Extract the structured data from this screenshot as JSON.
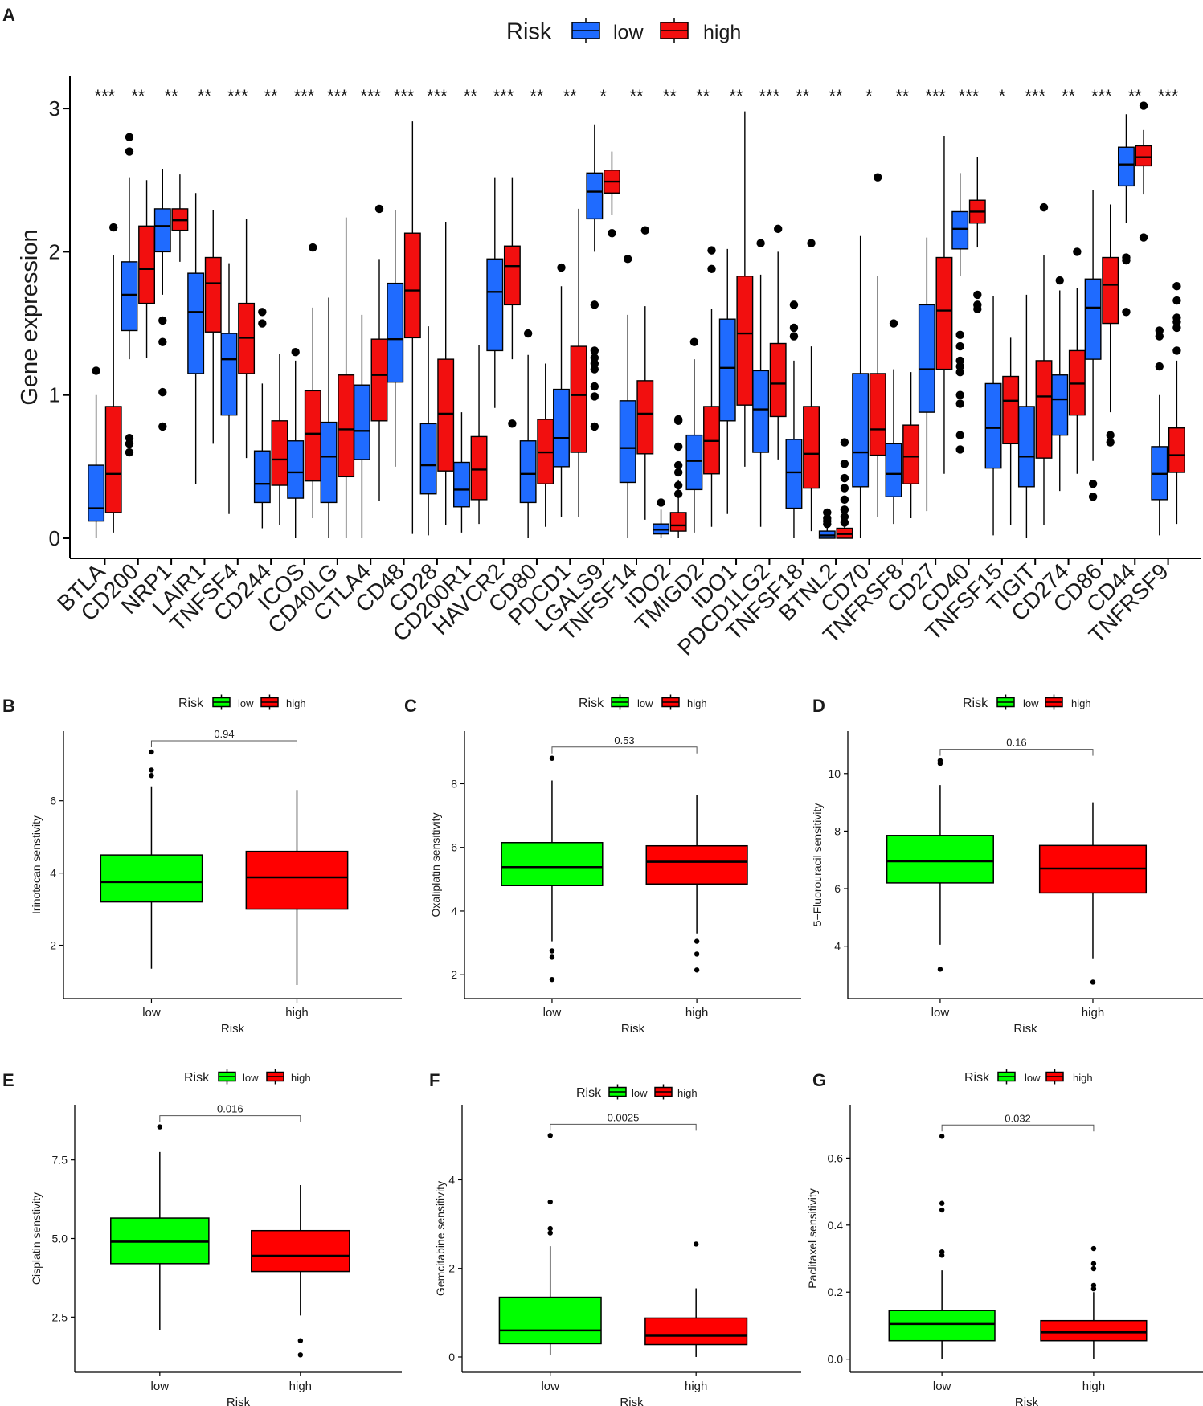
{
  "colors": {
    "panelA_low": "#1F6BFF",
    "panelA_high": "#F20F0F",
    "lower_low": "#00FF00",
    "lower_high": "#FF0000",
    "axis": "#000000",
    "text": "#1a1a1a"
  },
  "chart_data": [
    {
      "id": "A",
      "panel_label": "A",
      "type": "box",
      "legend": {
        "title": "Risk",
        "position": "top",
        "items": [
          "low",
          "high"
        ]
      },
      "ylabel": "Gene expression",
      "xlabel": "",
      "ylim": [
        -0.15,
        3.12
      ],
      "yticks": [
        "0",
        "1",
        "2",
        "3"
      ],
      "categories": [
        "BTLA",
        "CD200",
        "NRP1",
        "LAIR1",
        "TNFSF4",
        "CD244",
        "ICOS",
        "CD40LG",
        "CTLA4",
        "CD48",
        "CD28",
        "CD200R1",
        "HAVCR2",
        "CD80",
        "PDCD1",
        "LGALS9",
        "TNFSF14",
        "IDO2",
        "TMIGD2",
        "IDO1",
        "PDCD1LG2",
        "TNFSF18",
        "BTNL2",
        "CD70",
        "TNFRSF8",
        "CD27",
        "CD40",
        "TNFSF15",
        "TIGIT",
        "CD274",
        "CD86",
        "CD44",
        "TNFRSF9"
      ],
      "significance": [
        "***",
        "**",
        "**",
        "**",
        "***",
        "**",
        "***",
        "***",
        "***",
        "***",
        "***",
        "**",
        "***",
        "**",
        "**",
        "*",
        "**",
        "**",
        "**",
        "**",
        "***",
        "**",
        "**",
        "*",
        "**",
        "***",
        "***",
        "*",
        "***",
        "**",
        "***",
        "**",
        "***"
      ],
      "series": [
        {
          "name": "low",
          "boxes": [
            [
              0,
              0.12,
              0.21,
              0.51,
              1.0
            ],
            [
              1.25,
              1.45,
              1.7,
              1.93,
              2.52
            ],
            [
              1.7,
              2.0,
              2.18,
              2.3,
              2.58
            ],
            [
              0.38,
              1.15,
              1.58,
              1.85,
              2.41
            ],
            [
              0.17,
              0.86,
              1.25,
              1.43,
              1.92
            ],
            [
              0.07,
              0.25,
              0.38,
              0.61,
              1.08
            ],
            [
              0.0,
              0.28,
              0.46,
              0.68,
              1.24
            ],
            [
              0.0,
              0.25,
              0.57,
              0.81,
              1.68
            ],
            [
              0.0,
              0.55,
              0.75,
              1.07,
              1.56
            ],
            [
              0.5,
              1.09,
              1.39,
              1.78,
              2.29
            ],
            [
              0.02,
              0.31,
              0.51,
              0.8,
              1.48
            ],
            [
              0.04,
              0.22,
              0.34,
              0.53,
              0.88
            ],
            [
              0.91,
              1.31,
              1.72,
              1.95,
              2.52
            ],
            [
              0.0,
              0.25,
              0.45,
              0.68,
              1.28
            ],
            [
              0.15,
              0.5,
              0.7,
              1.04,
              1.76
            ],
            [
              2.0,
              2.23,
              2.42,
              2.55,
              2.89
            ],
            [
              0.0,
              0.39,
              0.63,
              0.96,
              1.56
            ],
            [
              0.0,
              0.03,
              0.06,
              0.1,
              0.2
            ],
            [
              0.04,
              0.34,
              0.54,
              0.72,
              1.25
            ],
            [
              0.17,
              0.82,
              1.19,
              1.53,
              2.02
            ],
            [
              0.08,
              0.6,
              0.9,
              1.17,
              1.84
            ],
            [
              0.0,
              0.21,
              0.46,
              0.69,
              1.24
            ],
            [
              0.0,
              0.0,
              0.02,
              0.05,
              0.08
            ],
            [
              0.0,
              0.36,
              0.6,
              1.15,
              2.11
            ],
            [
              0.1,
              0.29,
              0.45,
              0.66,
              1.18
            ],
            [
              0.19,
              0.88,
              1.18,
              1.63,
              2.1
            ],
            [
              1.83,
              2.02,
              2.16,
              2.28,
              2.55
            ],
            [
              0.02,
              0.49,
              0.77,
              1.08,
              1.69
            ],
            [
              0.0,
              0.36,
              0.57,
              0.92,
              1.7
            ],
            [
              0.33,
              0.72,
              0.97,
              1.14,
              1.73
            ],
            [
              0.54,
              1.25,
              1.61,
              1.81,
              2.43
            ],
            [
              2.2,
              2.46,
              2.61,
              2.73,
              2.96
            ],
            [
              0.02,
              0.27,
              0.45,
              0.64,
              1.0
            ]
          ],
          "outliers": [
            [
              1.17
            ],
            [
              2.7,
              2.8,
              0.6,
              0.66,
              0.7
            ],
            [
              1.52,
              1.37,
              1.02,
              0.78
            ],
            [],
            [],
            [
              1.58,
              1.5
            ],
            [
              1.3
            ],
            [],
            [],
            [],
            [],
            [],
            [],
            [
              1.43
            ],
            [
              1.89
            ],
            [
              1.63,
              1.31,
              1.26,
              1.22,
              1.18,
              1.06,
              0.99,
              0.78
            ],
            [
              1.95
            ],
            [
              0.25
            ],
            [
              1.37
            ],
            [],
            [
              2.06
            ],
            [
              1.63,
              1.47,
              1.41
            ],
            [
              0.18,
              0.14,
              0.12,
              0.1
            ],
            [],
            [
              1.5
            ],
            [],
            [
              1.42,
              1.34,
              1.24,
              1.2,
              1.16,
              1.0,
              0.94,
              0.72,
              0.62
            ],
            [],
            [],
            [
              1.8
            ],
            [
              0.38,
              0.29
            ],
            [
              1.96,
              1.94,
              1.58
            ],
            [
              1.45,
              1.41,
              1.2
            ]
          ]
        },
        {
          "name": "high",
          "boxes": [
            [
              0.04,
              0.18,
              0.45,
              0.92,
              1.98
            ],
            [
              1.26,
              1.64,
              1.88,
              2.18,
              2.5
            ],
            [
              1.93,
              2.15,
              2.22,
              2.3,
              2.54
            ],
            [
              0.66,
              1.44,
              1.78,
              1.96,
              2.29
            ],
            [
              0.56,
              1.15,
              1.4,
              1.64,
              2.23
            ],
            [
              0.09,
              0.37,
              0.55,
              0.82,
              1.29
            ],
            [
              0.14,
              0.4,
              0.73,
              1.03,
              1.61
            ],
            [
              0.0,
              0.43,
              0.76,
              1.14,
              2.24
            ],
            [
              0.26,
              0.82,
              1.14,
              1.39,
              1.95
            ],
            [
              0.03,
              1.4,
              1.73,
              2.13,
              2.91
            ],
            [
              0.09,
              0.47,
              0.87,
              1.25,
              2.21
            ],
            [
              0.1,
              0.27,
              0.48,
              0.71,
              1.35
            ],
            [
              1.25,
              1.63,
              1.9,
              2.04,
              2.52
            ],
            [
              0.08,
              0.38,
              0.6,
              0.83,
              1.22
            ],
            [
              0.15,
              0.6,
              1.0,
              1.34,
              2.3
            ],
            [
              2.26,
              2.41,
              2.49,
              2.57,
              2.7
            ],
            [
              0.13,
              0.59,
              0.87,
              1.1,
              1.62
            ],
            [
              0.0,
              0.05,
              0.09,
              0.18,
              0.41
            ],
            [
              0.08,
              0.45,
              0.68,
              0.92,
              1.6
            ],
            [
              0.5,
              0.93,
              1.43,
              1.83,
              2.98
            ],
            [
              0.55,
              0.85,
              1.08,
              1.36,
              2.0
            ],
            [
              0.05,
              0.35,
              0.59,
              0.92,
              1.34
            ],
            [
              0.0,
              0.0,
              0.03,
              0.07,
              0.12
            ],
            [
              0.15,
              0.58,
              0.76,
              1.15,
              1.83
            ],
            [
              0.14,
              0.38,
              0.57,
              0.79,
              1.16
            ],
            [
              0.45,
              1.18,
              1.59,
              1.96,
              2.81
            ],
            [
              2.03,
              2.2,
              2.28,
              2.36,
              2.66
            ],
            [
              0.09,
              0.66,
              0.96,
              1.13,
              1.4
            ],
            [
              0.09,
              0.56,
              0.99,
              1.24,
              1.98
            ],
            [
              0.45,
              0.86,
              1.08,
              1.31,
              1.75
            ],
            [
              0.88,
              1.5,
              1.77,
              1.96,
              2.33
            ],
            [
              2.4,
              2.6,
              2.66,
              2.74,
              2.85
            ],
            [
              0.1,
              0.46,
              0.58,
              0.77,
              1.24
            ]
          ],
          "outliers": [
            [
              2.17
            ],
            [],
            [],
            [],
            [],
            [],
            [
              2.03
            ],
            [],
            [
              2.3
            ],
            [],
            [],
            [],
            [
              0.8
            ],
            [],
            [],
            [
              2.13
            ],
            [
              2.15
            ],
            [
              0.83,
              0.82,
              0.64,
              0.51,
              0.46,
              0.37,
              0.31
            ],
            [
              2.01,
              1.88
            ],
            [],
            [
              2.16
            ],
            [
              2.06
            ],
            [
              0.67,
              0.52,
              0.42,
              0.35,
              0.27,
              0.2,
              0.15,
              0.11
            ],
            [
              2.52
            ],
            [],
            [],
            [
              1.7,
              1.63,
              1.6
            ],
            [],
            [
              2.31
            ],
            [
              2.0
            ],
            [
              0.72,
              0.67
            ],
            [
              3.02,
              2.1
            ],
            [
              1.76,
              1.66,
              1.54,
              1.51,
              1.47,
              1.31
            ]
          ]
        }
      ]
    },
    {
      "id": "B",
      "panel_label": "B",
      "type": "box",
      "legend": {
        "title": "Risk",
        "position": "top",
        "items": [
          "low",
          "high"
        ]
      },
      "xlabel": "Risk",
      "ylabel": "Irinotecan senstivity",
      "ylim": [
        0.7,
        7.75
      ],
      "yticks": [
        "2",
        "4",
        "6"
      ],
      "pvalue": "0.94",
      "categories": [
        "low",
        "high"
      ],
      "boxes": [
        [
          1.35,
          3.2,
          3.75,
          4.5,
          6.4
        ],
        [
          0.9,
          3.0,
          3.88,
          4.6,
          6.3
        ]
      ],
      "outliers": [
        [
          7.35,
          6.85,
          6.7
        ],
        []
      ]
    },
    {
      "id": "C",
      "panel_label": "C",
      "type": "box",
      "legend": {
        "title": "Risk",
        "position": "top",
        "items": [
          "low",
          "high"
        ]
      },
      "xlabel": "Risk",
      "ylabel": "Oxaliplatin sensitivity",
      "ylim": [
        1.45,
        9.45
      ],
      "yticks": [
        "2",
        "4",
        "6",
        "8"
      ],
      "pvalue": "0.53",
      "categories": [
        "low",
        "high"
      ],
      "boxes": [
        [
          3.05,
          4.8,
          5.38,
          6.15,
          8.1
        ],
        [
          3.3,
          4.85,
          5.55,
          6.05,
          7.65
        ]
      ],
      "outliers": [
        [
          8.8,
          2.75,
          2.55,
          1.85
        ],
        [
          3.05,
          2.65,
          2.15
        ]
      ]
    },
    {
      "id": "D",
      "panel_label": "D",
      "type": "box",
      "legend": {
        "title": "Risk",
        "position": "top",
        "items": [
          "low",
          "high"
        ]
      },
      "xlabel": "Risk",
      "ylabel": "5−Fluorouracil sensitivity",
      "ylim": [
        2.4,
        11.25
      ],
      "yticks": [
        "4",
        "6",
        "8",
        "10"
      ],
      "pvalue": "0.16",
      "categories": [
        "low",
        "high"
      ],
      "boxes": [
        [
          4.05,
          6.2,
          6.95,
          7.85,
          9.6
        ],
        [
          3.55,
          5.85,
          6.7,
          7.5,
          9.0
        ]
      ],
      "outliers": [
        [
          10.45,
          10.35,
          3.2
        ],
        [
          2.75
        ]
      ]
    },
    {
      "id": "E",
      "panel_label": "E",
      "type": "box",
      "legend": {
        "title": "Risk",
        "position": "top",
        "items": [
          "low",
          "high"
        ]
      },
      "xlabel": "Risk",
      "ylabel": "Cisplatin senstivity",
      "ylim": [
        0.95,
        9.05
      ],
      "yticks": [
        "2.5",
        "5.0",
        "7.5"
      ],
      "pvalue": "0.016",
      "categories": [
        "low",
        "high"
      ],
      "boxes": [
        [
          2.1,
          4.2,
          4.9,
          5.65,
          7.75
        ],
        [
          2.55,
          3.95,
          4.45,
          5.25,
          6.7
        ]
      ],
      "outliers": [
        [
          8.55
        ],
        [
          1.75,
          1.3
        ]
      ]
    },
    {
      "id": "F",
      "panel_label": "F",
      "type": "box",
      "legend": {
        "title": "Risk",
        "position": "top",
        "items": [
          "low",
          "high"
        ]
      },
      "xlabel": "Risk",
      "ylabel": "Gemcitabine sensitivity",
      "ylim": [
        -0.2,
        5.55
      ],
      "yticks": [
        "0",
        "2",
        "4"
      ],
      "pvalue": "0.0025",
      "categories": [
        "low",
        "high"
      ],
      "boxes": [
        [
          0.05,
          0.3,
          0.6,
          1.35,
          2.5
        ],
        [
          0.0,
          0.28,
          0.48,
          0.88,
          1.55
        ]
      ],
      "outliers": [
        [
          5.0,
          3.5,
          2.9,
          2.8
        ],
        [
          2.55
        ]
      ]
    },
    {
      "id": "G",
      "panel_label": "G",
      "type": "box",
      "legend": {
        "title": "Risk",
        "position": "top",
        "items": [
          "low",
          "high"
        ]
      },
      "xlabel": "Risk",
      "ylabel": "Paclitaxel sensitivity",
      "ylim": [
        -0.02,
        0.74
      ],
      "yticks": [
        "0.0",
        "0.2",
        "0.4",
        "0.6"
      ],
      "pvalue": "0.032",
      "categories": [
        "low",
        "high"
      ],
      "boxes": [
        [
          0.0,
          0.055,
          0.105,
          0.145,
          0.265
        ],
        [
          0.0,
          0.055,
          0.08,
          0.115,
          0.2
        ]
      ],
      "outliers": [
        [
          0.665,
          0.465,
          0.445,
          0.32,
          0.31
        ],
        [
          0.33,
          0.285,
          0.27,
          0.22,
          0.21
        ]
      ]
    }
  ]
}
